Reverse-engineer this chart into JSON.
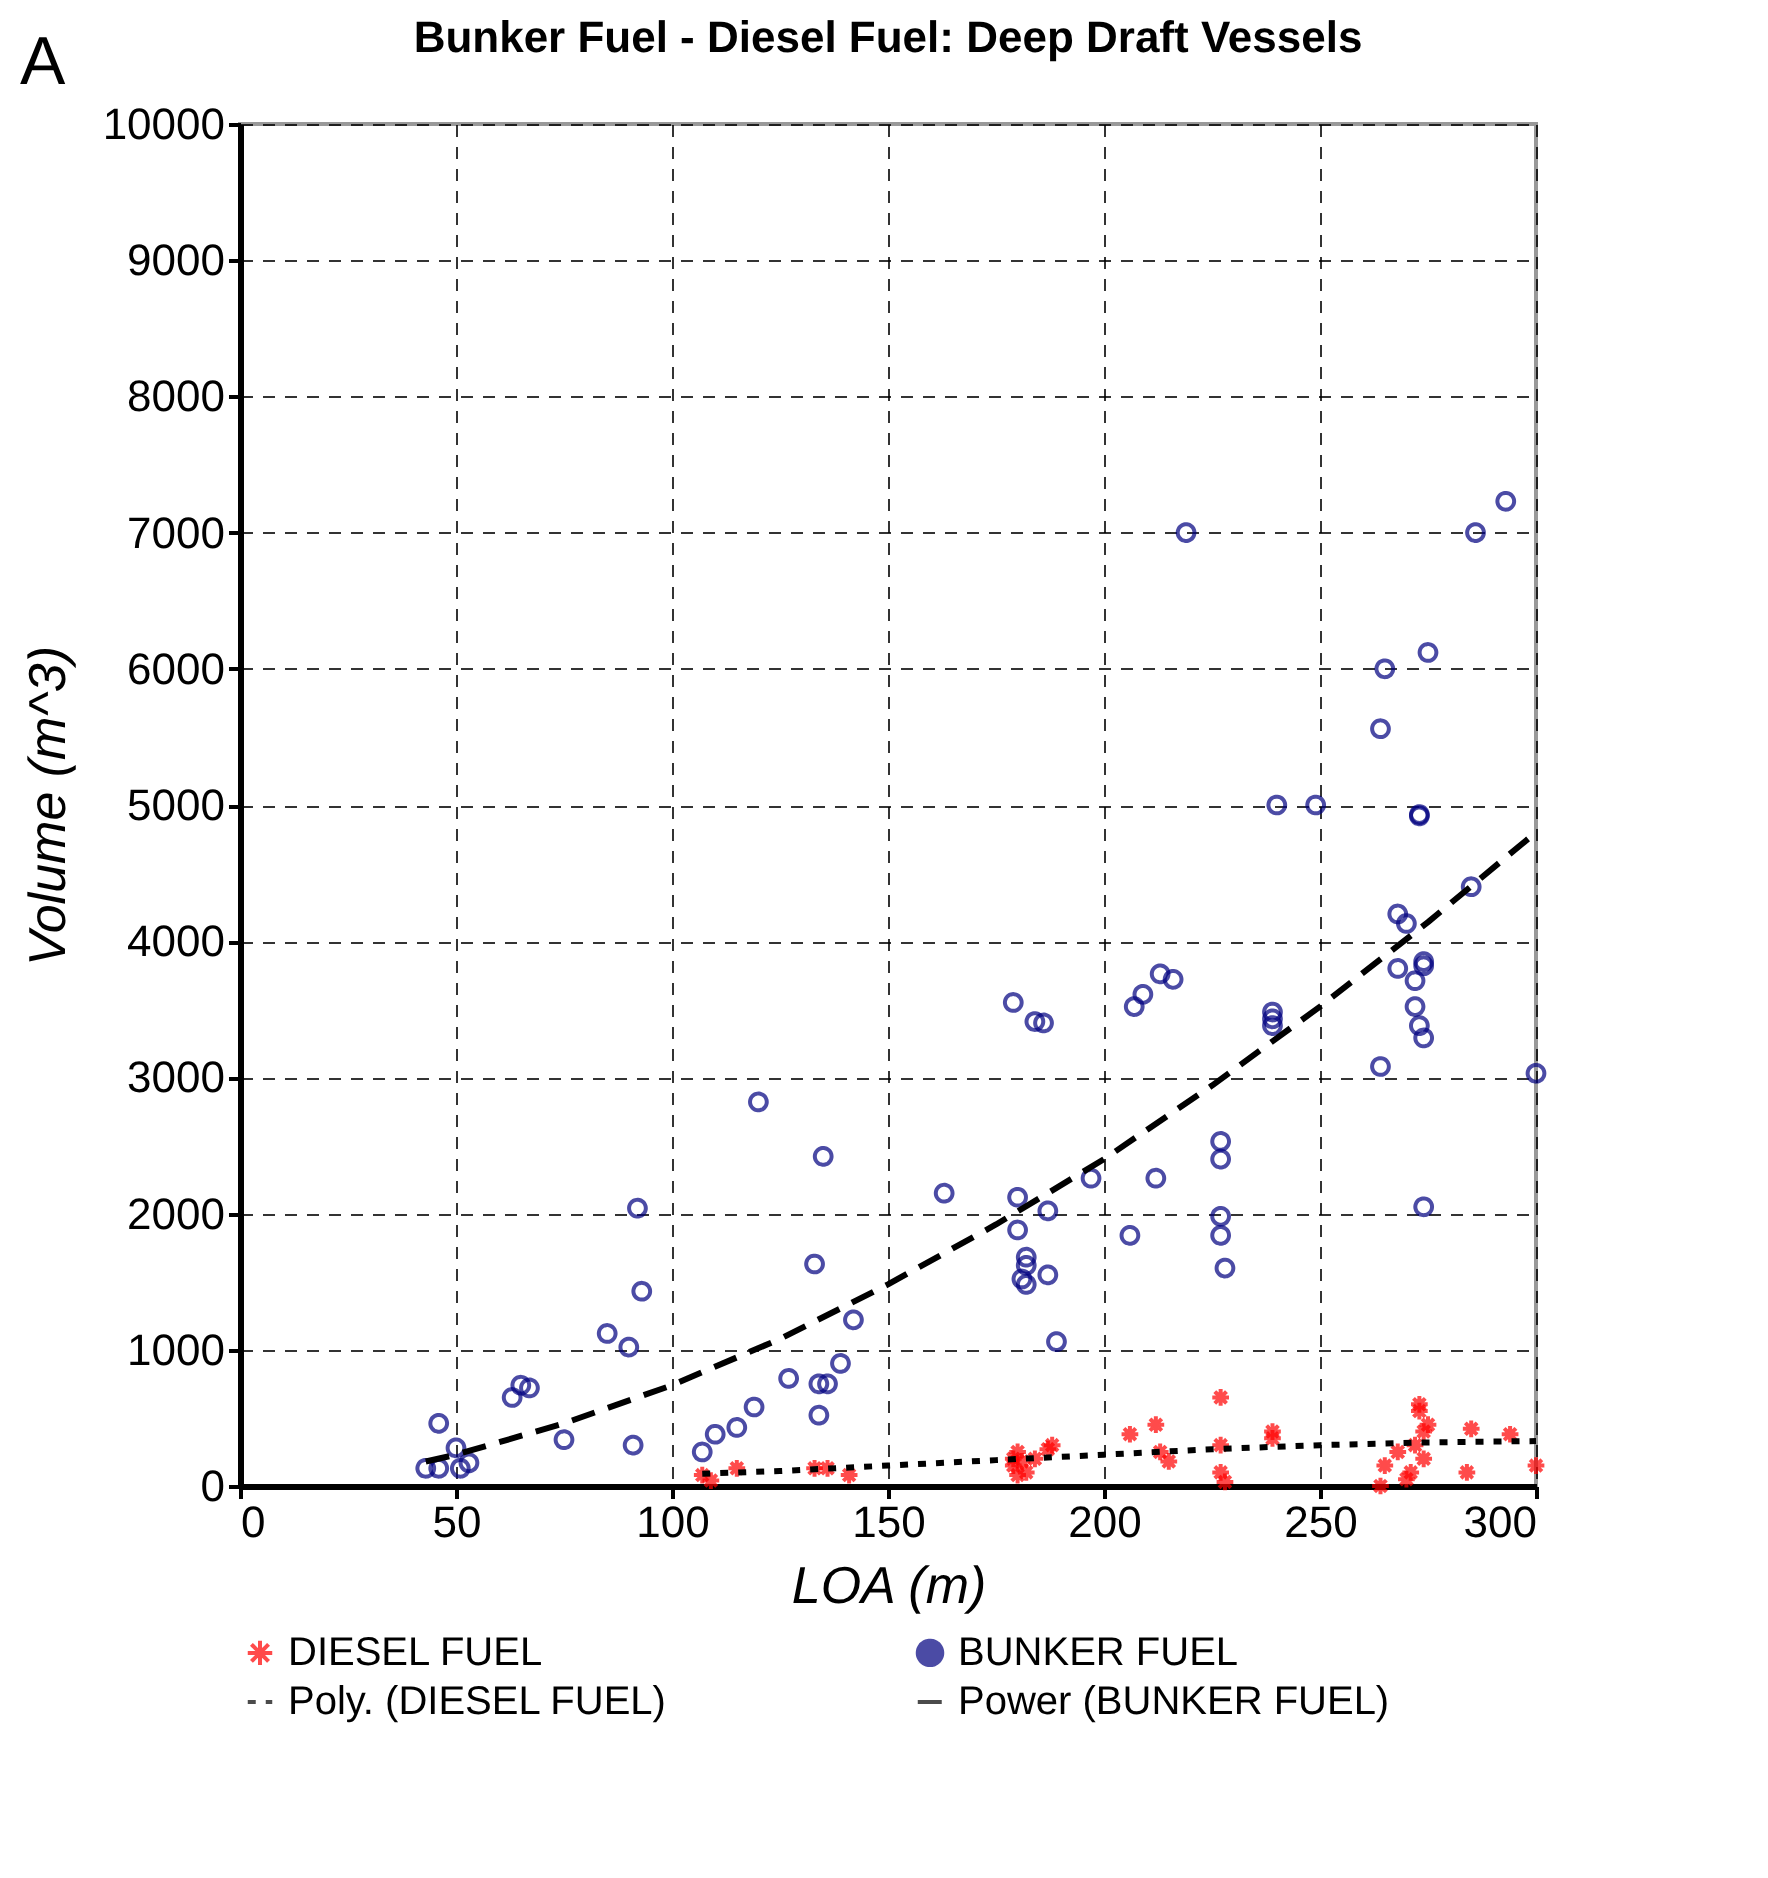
{
  "chart_data": {
    "type": "scatter",
    "title": "Bunker Fuel - Diesel Fuel: Deep Draft Vessels",
    "xlabel": "LOA (m)",
    "ylabel": "Volume (m^3)",
    "annotations": [
      "A"
    ],
    "xlim": [
      0,
      300
    ],
    "xticks": [
      0,
      50,
      100,
      150,
      200,
      250,
      300
    ],
    "ylim": [
      0,
      10000
    ],
    "yticks": [
      0,
      1000,
      2000,
      3000,
      4000,
      5000,
      6000,
      7000,
      8000,
      9000,
      10000
    ],
    "grid": true,
    "legend": "bottom",
    "series": [
      {
        "name": "DIESEL FUEL",
        "type": "scatter",
        "marker": "cross",
        "color": "#ff0000",
        "x": [
          107,
          109,
          115,
          133,
          136,
          141,
          179,
          179,
          180,
          180,
          181,
          182,
          184,
          187,
          188,
          206,
          212,
          213,
          215,
          227,
          227,
          227,
          228,
          239,
          239,
          264,
          265,
          268,
          270,
          271,
          272,
          273,
          273,
          274,
          274,
          275,
          284,
          285,
          294,
          300
        ],
        "values": [
          80,
          40,
          130,
          130,
          130,
          80,
          200,
          150,
          250,
          80,
          180,
          100,
          200,
          270,
          300,
          380,
          450,
          250,
          180,
          650,
          300,
          100,
          30,
          350,
          400,
          0,
          150,
          250,
          50,
          100,
          300,
          600,
          550,
          200,
          400,
          450,
          100,
          420,
          380,
          150
        ]
      },
      {
        "name": "BUNKER FUEL",
        "type": "scatter",
        "marker": "circle",
        "color": "#000080",
        "x": [
          43,
          46,
          46,
          50,
          51,
          53,
          63,
          65,
          67,
          75,
          85,
          90,
          91,
          92,
          93,
          107,
          110,
          115,
          119,
          120,
          127,
          133,
          134,
          134,
          136,
          135,
          139,
          142,
          163,
          179,
          180,
          180,
          181,
          182,
          182,
          182,
          184,
          186,
          187,
          187,
          189,
          197,
          206,
          207,
          209,
          212,
          213,
          216,
          219,
          227,
          227,
          227,
          227,
          228,
          239,
          239,
          239,
          240,
          249,
          264,
          264,
          265,
          268,
          268,
          270,
          272,
          272,
          273,
          273,
          273,
          274,
          274,
          274,
          274,
          275,
          285,
          286,
          293,
          300
        ],
        "values": [
          130,
          130,
          460,
          280,
          130,
          170,
          650,
          740,
          720,
          340,
          1120,
          1020,
          300,
          2040,
          1430,
          250,
          380,
          430,
          580,
          2820,
          790,
          1630,
          520,
          750,
          750,
          2420,
          900,
          1220,
          2150,
          3550,
          1880,
          2120,
          1520,
          1680,
          1620,
          1480,
          3410,
          3400,
          2020,
          1550,
          1060,
          2260,
          1840,
          3520,
          3610,
          2260,
          3760,
          3720,
          7000,
          1980,
          1840,
          2400,
          2530,
          1600,
          3380,
          3430,
          3480,
          5000,
          5000,
          3080,
          5560,
          6000,
          3800,
          4200,
          4130,
          3710,
          3520,
          4920,
          4930,
          3380,
          3290,
          3820,
          3850,
          2050,
          6120,
          4400,
          7000,
          7230,
          3030
        ]
      },
      {
        "name": "Poly. (DIESEL FUEL)",
        "type": "line",
        "line_style": "dotted",
        "color": "#000000",
        "x": [
          107,
          125,
          150,
          175,
          200,
          225,
          250,
          275,
          300
        ],
        "values": [
          90,
          110,
          150,
          190,
          230,
          270,
          300,
          320,
          330
        ]
      },
      {
        "name": "Power (BUNKER FUEL)",
        "type": "line",
        "line_style": "dashed",
        "color": "#000000",
        "x": [
          43,
          50,
          75,
          100,
          125,
          150,
          175,
          200,
          225,
          250,
          275,
          300
        ],
        "values": [
          180,
          230,
          460,
          740,
          1080,
          1480,
          1920,
          2400,
          2940,
          3520,
          4140,
          4800
        ]
      }
    ]
  }
}
